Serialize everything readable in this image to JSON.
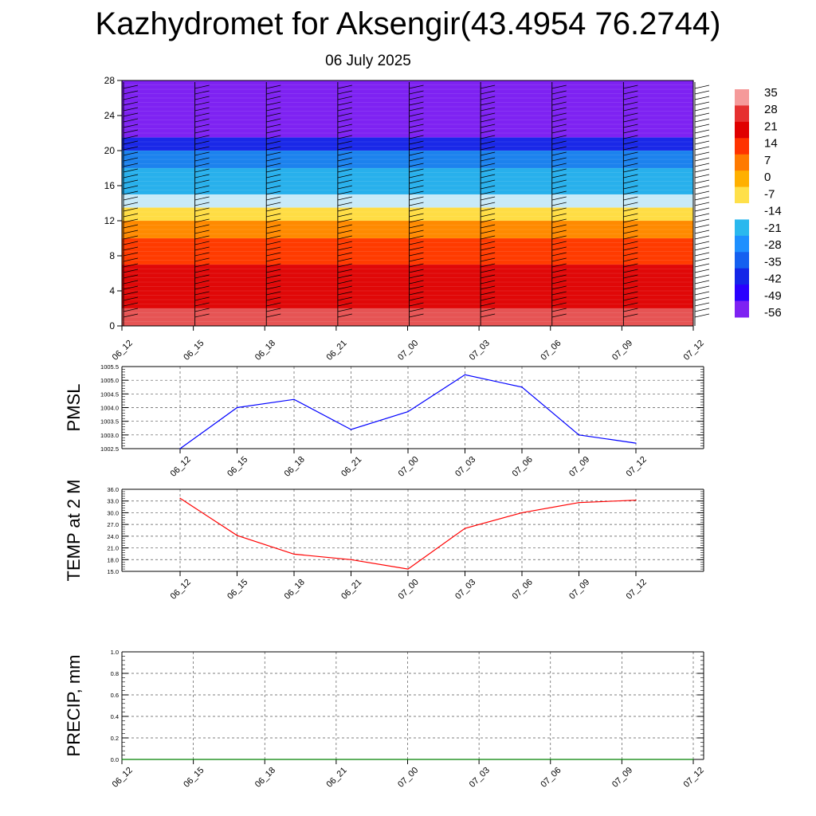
{
  "title": "Kazhydromet for Aksengir(43.4954 76.2744)",
  "subtitle": "06 July 2025",
  "time_labels": [
    "06_12",
    "06_15",
    "06_18",
    "06_21",
    "07_00",
    "07_03",
    "07_06",
    "07_09",
    "07_12"
  ],
  "chart_data": [
    {
      "type": "heatmap",
      "description_key": "temperature_cross_section",
      "x": [
        "06_12",
        "06_15",
        "06_18",
        "06_21",
        "07_00",
        "07_03",
        "07_06",
        "07_09",
        "07_12"
      ],
      "y_ticks": [
        0,
        4,
        8,
        12,
        16,
        20,
        24,
        28
      ],
      "ylim": [
        0,
        28
      ],
      "colorbar": {
        "labels": [
          "35",
          "28",
          "21",
          "14",
          "7",
          "0",
          "-7",
          "-14",
          "-21",
          "-28",
          "-35",
          "-42",
          "-49",
          "-56"
        ],
        "colors": [
          "#f59a9a",
          "#e63030",
          "#e00000",
          "#ff3300",
          "#ff7a00",
          "#ffb000",
          "#ffe04a",
          "#ffffff",
          "#2ab8ee",
          "#1e90ff",
          "#1560f0",
          "#1426e8",
          "#2a00ff",
          "#7e22f2"
        ]
      },
      "bands": [
        {
          "from": 0,
          "to": 2,
          "color": "#e65454"
        },
        {
          "from": 2,
          "to": 7,
          "color": "#e00808"
        },
        {
          "from": 7,
          "to": 10,
          "color": "#ff3b00"
        },
        {
          "from": 10,
          "to": 12,
          "color": "#ff8a00"
        },
        {
          "from": 12,
          "to": 13.5,
          "color": "#ffdd44"
        },
        {
          "from": 13.5,
          "to": 15,
          "color": "#c8eaf8"
        },
        {
          "from": 15,
          "to": 18,
          "color": "#28b0ec"
        },
        {
          "from": 18,
          "to": 20,
          "color": "#1c82ee"
        },
        {
          "from": 20,
          "to": 21.5,
          "color": "#1a28e8"
        },
        {
          "from": 21.5,
          "to": 28,
          "color": "#7e22f2"
        }
      ]
    },
    {
      "type": "line",
      "ylabel": "PMSL",
      "x": [
        "06_12",
        "06_15",
        "06_18",
        "06_21",
        "07_00",
        "07_03",
        "07_06",
        "07_09",
        "07_12"
      ],
      "ylim": [
        1002.5,
        1005.5
      ],
      "y_ticks": [
        "1002.5",
        "1003.0",
        "1003.5",
        "1004.0",
        "1004.5",
        "1005.0",
        "1005.5"
      ],
      "series": [
        {
          "color": "#0000ff",
          "values": [
            1002.5,
            1004.0,
            1004.3,
            1003.2,
            1003.85,
            1005.2,
            1004.75,
            1003.0,
            1002.7
          ]
        }
      ]
    },
    {
      "type": "line",
      "ylabel": "TEMP at 2 M",
      "x": [
        "06_12",
        "06_15",
        "06_18",
        "06_21",
        "07_00",
        "07_03",
        "07_06",
        "07_09",
        "07_12"
      ],
      "ylim": [
        15.0,
        36.0
      ],
      "y_ticks": [
        "15.0",
        "18.0",
        "21.0",
        "24.0",
        "27.0",
        "30.0",
        "33.0",
        "36.0"
      ],
      "series": [
        {
          "color": "#ff0000",
          "values": [
            33.7,
            24.2,
            19.4,
            18.0,
            15.6,
            26.0,
            30.0,
            32.6,
            33.2
          ]
        }
      ]
    },
    {
      "type": "line",
      "ylabel": "PRECIP, mm",
      "x": [
        "06_12",
        "06_15",
        "06_18",
        "06_21",
        "07_00",
        "07_03",
        "07_06",
        "07_09",
        "07_12"
      ],
      "ylim": [
        0.0,
        1.0
      ],
      "y_ticks": [
        "0.0",
        "0.2",
        "0.4",
        "0.6",
        "0.8",
        "1.0"
      ],
      "series": [
        {
          "color": "#008000",
          "values": [
            0,
            0,
            0,
            0,
            0,
            0,
            0,
            0,
            0
          ]
        }
      ]
    }
  ]
}
